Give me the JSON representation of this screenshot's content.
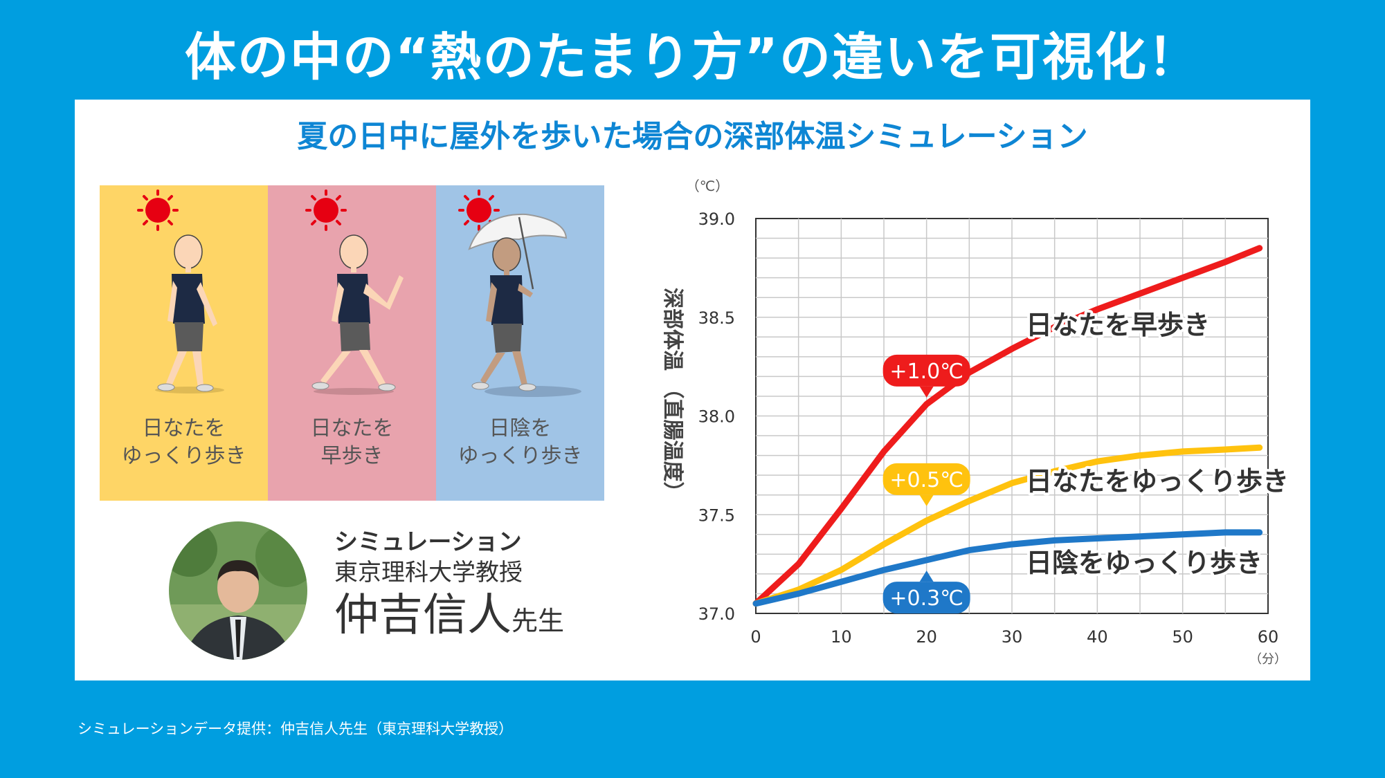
{
  "headline": "体の中の“熱のたまり方”の違いを可視化！",
  "subtitle": "夏の日中に屋外を歩いた場合の深部体温シミュレーション",
  "scenes": [
    {
      "caption_line1": "日なたを",
      "caption_line2": "ゆっくり歩き",
      "bg_color": "#fed566"
    },
    {
      "caption_line1": "日なたを",
      "caption_line2": "早歩き",
      "bg_color": "#e8a3ad"
    },
    {
      "caption_line1": "日陰を",
      "caption_line2": "ゆっくり歩き",
      "bg_color": "#a0c4e6"
    }
  ],
  "researcher": {
    "role": "シミュレーション",
    "affiliation": "東京理科大学教授",
    "name": "仲吉信人",
    "honorific": "先生"
  },
  "chart_data": {
    "type": "line",
    "y_unit": "（℃）",
    "x_unit": "（分）",
    "ylabel": "深部体温 （直腸温度）",
    "xlim": [
      0,
      60
    ],
    "ylim": [
      37.0,
      39.0
    ],
    "x_ticks": [
      "0",
      "10",
      "20",
      "30",
      "40",
      "50",
      "60"
    ],
    "y_ticks": [
      "37.0",
      "37.5",
      "38.0",
      "38.5",
      "39.0"
    ],
    "grid": true,
    "series": [
      {
        "name": "日なたを早歩き",
        "color": "#ee1c1c",
        "x": [
          0,
          5,
          10,
          15,
          20,
          25,
          30,
          35,
          40,
          45,
          50,
          55,
          59
        ],
        "y": [
          37.05,
          37.25,
          37.53,
          37.82,
          38.06,
          38.22,
          38.34,
          38.45,
          38.54,
          38.62,
          38.7,
          38.78,
          38.85
        ],
        "badge": "+1.0℃"
      },
      {
        "name": "日なたをゆっくり歩き",
        "color": "#ffc20e",
        "x": [
          0,
          5,
          10,
          15,
          20,
          25,
          30,
          35,
          40,
          45,
          50,
          55,
          59
        ],
        "y": [
          37.05,
          37.12,
          37.22,
          37.35,
          37.47,
          37.57,
          37.66,
          37.72,
          37.77,
          37.8,
          37.82,
          37.83,
          37.84
        ],
        "badge": "+0.5℃"
      },
      {
        "name": "日陰をゆっくり歩き",
        "color": "#1f78c8",
        "x": [
          0,
          5,
          10,
          15,
          20,
          25,
          30,
          35,
          40,
          45,
          50,
          55,
          59
        ],
        "y": [
          37.05,
          37.1,
          37.16,
          37.22,
          37.27,
          37.32,
          37.35,
          37.37,
          37.38,
          37.39,
          37.4,
          37.41,
          37.41
        ],
        "badge": "+0.3℃"
      }
    ]
  },
  "footnote": "シミュレーションデータ提供：仲吉信人先生（東京理科大学教授）"
}
